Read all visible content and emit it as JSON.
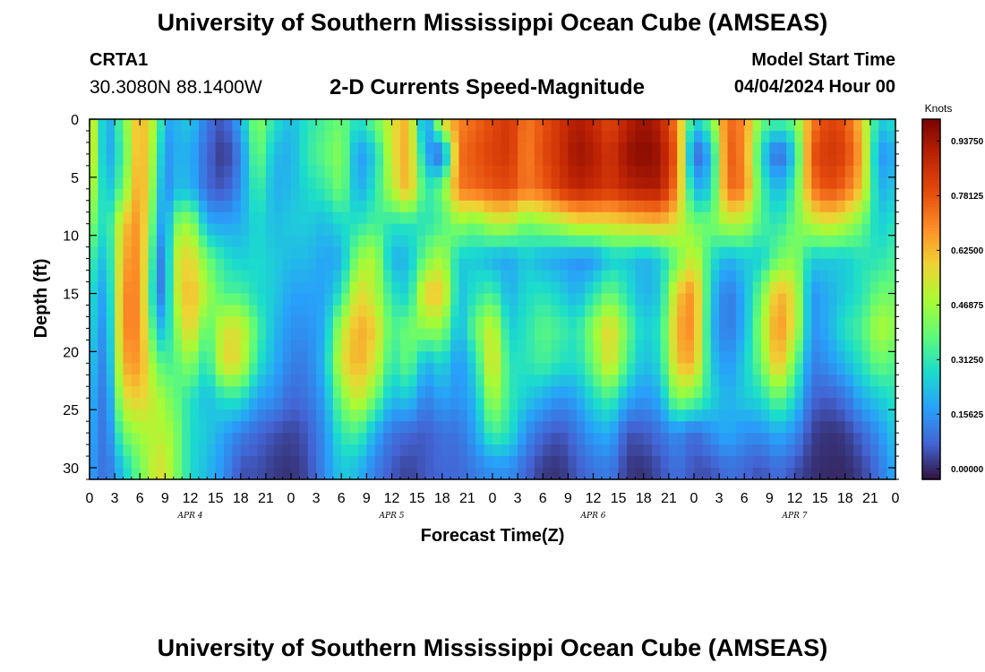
{
  "header": {
    "title": "University of Southern Mississippi Ocean Cube (AMSEAS)",
    "station_id": "CRTA1",
    "station_coords": "30.3080N  88.1400W",
    "chart_title": "2-D Currents Speed-Magnitude",
    "model_start_label": "Model Start Time",
    "model_start_value": "04/04/2024 Hour 00"
  },
  "footer": {
    "title": "University of Southern Mississippi Ocean Cube (AMSEAS)"
  },
  "chart_data": {
    "type": "heatmap",
    "title": "2-D Currents Speed-Magnitude",
    "xlabel": "Forecast Time(Z)",
    "ylabel": "Depth (ft)",
    "x_hours": [
      0,
      96
    ],
    "y_depth_range": [
      0,
      31
    ],
    "x_tick_labels": [
      "0",
      "3",
      "6",
      "9",
      "12",
      "15",
      "18",
      "21",
      "0",
      "3",
      "6",
      "9",
      "12",
      "15",
      "18",
      "21",
      "0",
      "3",
      "6",
      "9",
      "12",
      "15",
      "18",
      "21",
      "0",
      "3",
      "6",
      "9",
      "12",
      "15",
      "18",
      "21",
      "0"
    ],
    "y_tick_values": [
      0,
      5,
      10,
      15,
      20,
      25,
      30
    ],
    "day_labels": [
      {
        "text": "APR 4",
        "hour": 12
      },
      {
        "text": "APR 5",
        "hour": 36
      },
      {
        "text": "APR 6",
        "hour": 60
      },
      {
        "text": "APR 7",
        "hour": 84
      }
    ],
    "colorbar": {
      "title": "Knots",
      "range": [
        -0.03,
        1.0
      ],
      "ticks": [
        0.0,
        0.15625,
        0.3125,
        0.46875,
        0.625,
        0.78125,
        0.9375
      ],
      "tick_labels": [
        "0.00000",
        "0.15625",
        "0.31250",
        "0.46875",
        "0.62500",
        "0.78125",
        "0.93750"
      ]
    },
    "profile_hours": [
      0,
      2,
      4,
      6,
      8,
      9,
      10,
      12,
      14,
      16,
      18,
      20,
      22,
      24,
      26,
      28,
      30,
      32,
      34,
      36,
      38,
      40,
      42,
      44,
      46,
      48,
      50,
      52,
      54,
      56,
      58,
      60,
      62,
      64,
      66,
      68,
      70,
      72,
      74,
      76,
      78,
      80,
      82,
      84,
      86,
      88,
      90,
      92,
      94,
      96
    ],
    "profile_depths": [
      0,
      3,
      6,
      9,
      12,
      15,
      18,
      21,
      24,
      27,
      30
    ],
    "speed_knots": [
      [
        0.62,
        0.62,
        0.55,
        0.45,
        0.35,
        0.3,
        0.28,
        0.25,
        0.22,
        0.2,
        0.18
      ],
      [
        0.15,
        0.15,
        0.2,
        0.25,
        0.2,
        0.15,
        0.12,
        0.1,
        0.08,
        0.08,
        0.08
      ],
      [
        0.4,
        0.35,
        0.4,
        0.6,
        0.65,
        0.7,
        0.7,
        0.65,
        0.55,
        0.4,
        0.25
      ],
      [
        0.66,
        0.68,
        0.7,
        0.7,
        0.7,
        0.7,
        0.7,
        0.68,
        0.6,
        0.48,
        0.4
      ],
      [
        0.45,
        0.4,
        0.35,
        0.28,
        0.2,
        0.15,
        0.25,
        0.4,
        0.5,
        0.5,
        0.55
      ],
      [
        0.18,
        0.12,
        0.1,
        0.1,
        0.06,
        0.1,
        0.2,
        0.35,
        0.45,
        0.5,
        0.55
      ],
      [
        0.2,
        0.2,
        0.22,
        0.4,
        0.5,
        0.48,
        0.4,
        0.35,
        0.4,
        0.45,
        0.45
      ],
      [
        0.25,
        0.2,
        0.22,
        0.48,
        0.6,
        0.65,
        0.62,
        0.45,
        0.3,
        0.28,
        0.28
      ],
      [
        0.1,
        0.08,
        0.08,
        0.2,
        0.4,
        0.48,
        0.35,
        0.28,
        0.22,
        0.25,
        0.22
      ],
      [
        0.05,
        0.01,
        0.05,
        0.18,
        0.3,
        0.35,
        0.55,
        0.58,
        0.3,
        0.18,
        0.15
      ],
      [
        0.2,
        0.12,
        0.15,
        0.2,
        0.25,
        0.35,
        0.55,
        0.55,
        0.3,
        0.12,
        0.05
      ],
      [
        0.45,
        0.42,
        0.35,
        0.28,
        0.28,
        0.28,
        0.35,
        0.3,
        0.18,
        0.08,
        0.05
      ],
      [
        0.3,
        0.22,
        0.2,
        0.22,
        0.25,
        0.25,
        0.22,
        0.2,
        0.15,
        0.05,
        0.02
      ],
      [
        0.22,
        0.2,
        0.22,
        0.25,
        0.22,
        0.18,
        0.15,
        0.12,
        0.08,
        0.03,
        0.01
      ],
      [
        0.3,
        0.32,
        0.28,
        0.25,
        0.22,
        0.18,
        0.15,
        0.12,
        0.1,
        0.06,
        0.04
      ],
      [
        0.35,
        0.38,
        0.32,
        0.22,
        0.18,
        0.18,
        0.2,
        0.22,
        0.18,
        0.15,
        0.14
      ],
      [
        0.4,
        0.45,
        0.42,
        0.28,
        0.2,
        0.3,
        0.5,
        0.55,
        0.42,
        0.32,
        0.25
      ],
      [
        0.28,
        0.15,
        0.18,
        0.3,
        0.45,
        0.58,
        0.65,
        0.65,
        0.55,
        0.35,
        0.22
      ],
      [
        0.4,
        0.25,
        0.3,
        0.35,
        0.5,
        0.5,
        0.6,
        0.55,
        0.4,
        0.2,
        0.12
      ],
      [
        0.55,
        0.55,
        0.5,
        0.3,
        0.2,
        0.3,
        0.35,
        0.3,
        0.22,
        0.1,
        0.06
      ],
      [
        0.65,
        0.66,
        0.66,
        0.3,
        0.22,
        0.25,
        0.4,
        0.4,
        0.25,
        0.08,
        0.03
      ],
      [
        0.1,
        0.2,
        0.3,
        0.3,
        0.4,
        0.6,
        0.45,
        0.2,
        0.12,
        0.06,
        0.06
      ],
      [
        0.6,
        0.05,
        0.4,
        0.35,
        0.5,
        0.62,
        0.45,
        0.28,
        0.18,
        0.1,
        0.08
      ],
      [
        0.7,
        0.74,
        0.72,
        0.45,
        0.25,
        0.22,
        0.2,
        0.15,
        0.15,
        0.1,
        0.08
      ],
      [
        0.75,
        0.78,
        0.75,
        0.4,
        0.25,
        0.3,
        0.4,
        0.28,
        0.22,
        0.18,
        0.12
      ],
      [
        0.8,
        0.82,
        0.78,
        0.5,
        0.2,
        0.35,
        0.55,
        0.6,
        0.5,
        0.35,
        0.15
      ],
      [
        0.85,
        0.85,
        0.8,
        0.5,
        0.18,
        0.2,
        0.25,
        0.3,
        0.32,
        0.3,
        0.15
      ],
      [
        0.72,
        0.7,
        0.72,
        0.4,
        0.25,
        0.28,
        0.3,
        0.3,
        0.25,
        0.15,
        0.08
      ],
      [
        0.78,
        0.8,
        0.76,
        0.45,
        0.2,
        0.3,
        0.38,
        0.35,
        0.2,
        0.08,
        0.02
      ],
      [
        0.85,
        0.86,
        0.84,
        0.48,
        0.18,
        0.26,
        0.34,
        0.3,
        0.15,
        0.05,
        0.01
      ],
      [
        0.92,
        0.95,
        0.9,
        0.55,
        0.15,
        0.2,
        0.3,
        0.28,
        0.18,
        0.1,
        0.06
      ],
      [
        0.88,
        0.92,
        0.88,
        0.55,
        0.15,
        0.3,
        0.45,
        0.4,
        0.28,
        0.18,
        0.1
      ],
      [
        0.8,
        0.85,
        0.84,
        0.56,
        0.25,
        0.4,
        0.6,
        0.58,
        0.35,
        0.2,
        0.12
      ],
      [
        0.9,
        0.95,
        0.9,
        0.58,
        0.25,
        0.3,
        0.4,
        0.35,
        0.2,
        0.05,
        0.02
      ],
      [
        0.95,
        0.98,
        0.92,
        0.6,
        0.2,
        0.2,
        0.25,
        0.22,
        0.15,
        0.06,
        0.01
      ],
      [
        0.9,
        0.95,
        0.92,
        0.62,
        0.25,
        0.25,
        0.3,
        0.28,
        0.2,
        0.1,
        0.05
      ],
      [
        0.7,
        0.75,
        0.7,
        0.55,
        0.4,
        0.6,
        0.65,
        0.62,
        0.45,
        0.15,
        0.1
      ],
      [
        0.25,
        0.05,
        0.2,
        0.4,
        0.55,
        0.7,
        0.7,
        0.65,
        0.4,
        0.08,
        0.05
      ],
      [
        0.4,
        0.2,
        0.25,
        0.4,
        0.3,
        0.25,
        0.22,
        0.25,
        0.28,
        0.15,
        0.05
      ],
      [
        0.75,
        0.78,
        0.75,
        0.5,
        0.2,
        0.1,
        0.1,
        0.15,
        0.2,
        0.2,
        0.1
      ],
      [
        0.7,
        0.7,
        0.72,
        0.48,
        0.25,
        0.2,
        0.2,
        0.25,
        0.25,
        0.15,
        0.08
      ],
      [
        0.4,
        0.28,
        0.35,
        0.35,
        0.25,
        0.4,
        0.45,
        0.4,
        0.28,
        0.15,
        0.05
      ],
      [
        0.35,
        0.05,
        0.2,
        0.3,
        0.4,
        0.65,
        0.7,
        0.65,
        0.4,
        0.2,
        0.1
      ],
      [
        0.4,
        0.25,
        0.35,
        0.4,
        0.45,
        0.55,
        0.55,
        0.4,
        0.28,
        0.15,
        0.05
      ],
      [
        0.7,
        0.78,
        0.72,
        0.5,
        0.25,
        0.15,
        0.15,
        0.12,
        0.08,
        0.03,
        0.01
      ],
      [
        0.82,
        0.85,
        0.8,
        0.55,
        0.25,
        0.2,
        0.2,
        0.15,
        0.06,
        0.01,
        0.0
      ],
      [
        0.78,
        0.82,
        0.75,
        0.5,
        0.25,
        0.25,
        0.3,
        0.22,
        0.1,
        0.02,
        0.0
      ],
      [
        0.6,
        0.65,
        0.6,
        0.4,
        0.3,
        0.3,
        0.35,
        0.3,
        0.2,
        0.08,
        0.03
      ],
      [
        0.25,
        0.15,
        0.2,
        0.25,
        0.3,
        0.4,
        0.5,
        0.4,
        0.25,
        0.15,
        0.1
      ],
      [
        0.3,
        0.2,
        0.25,
        0.3,
        0.35,
        0.4,
        0.45,
        0.35,
        0.3,
        0.25,
        0.2
      ]
    ]
  }
}
